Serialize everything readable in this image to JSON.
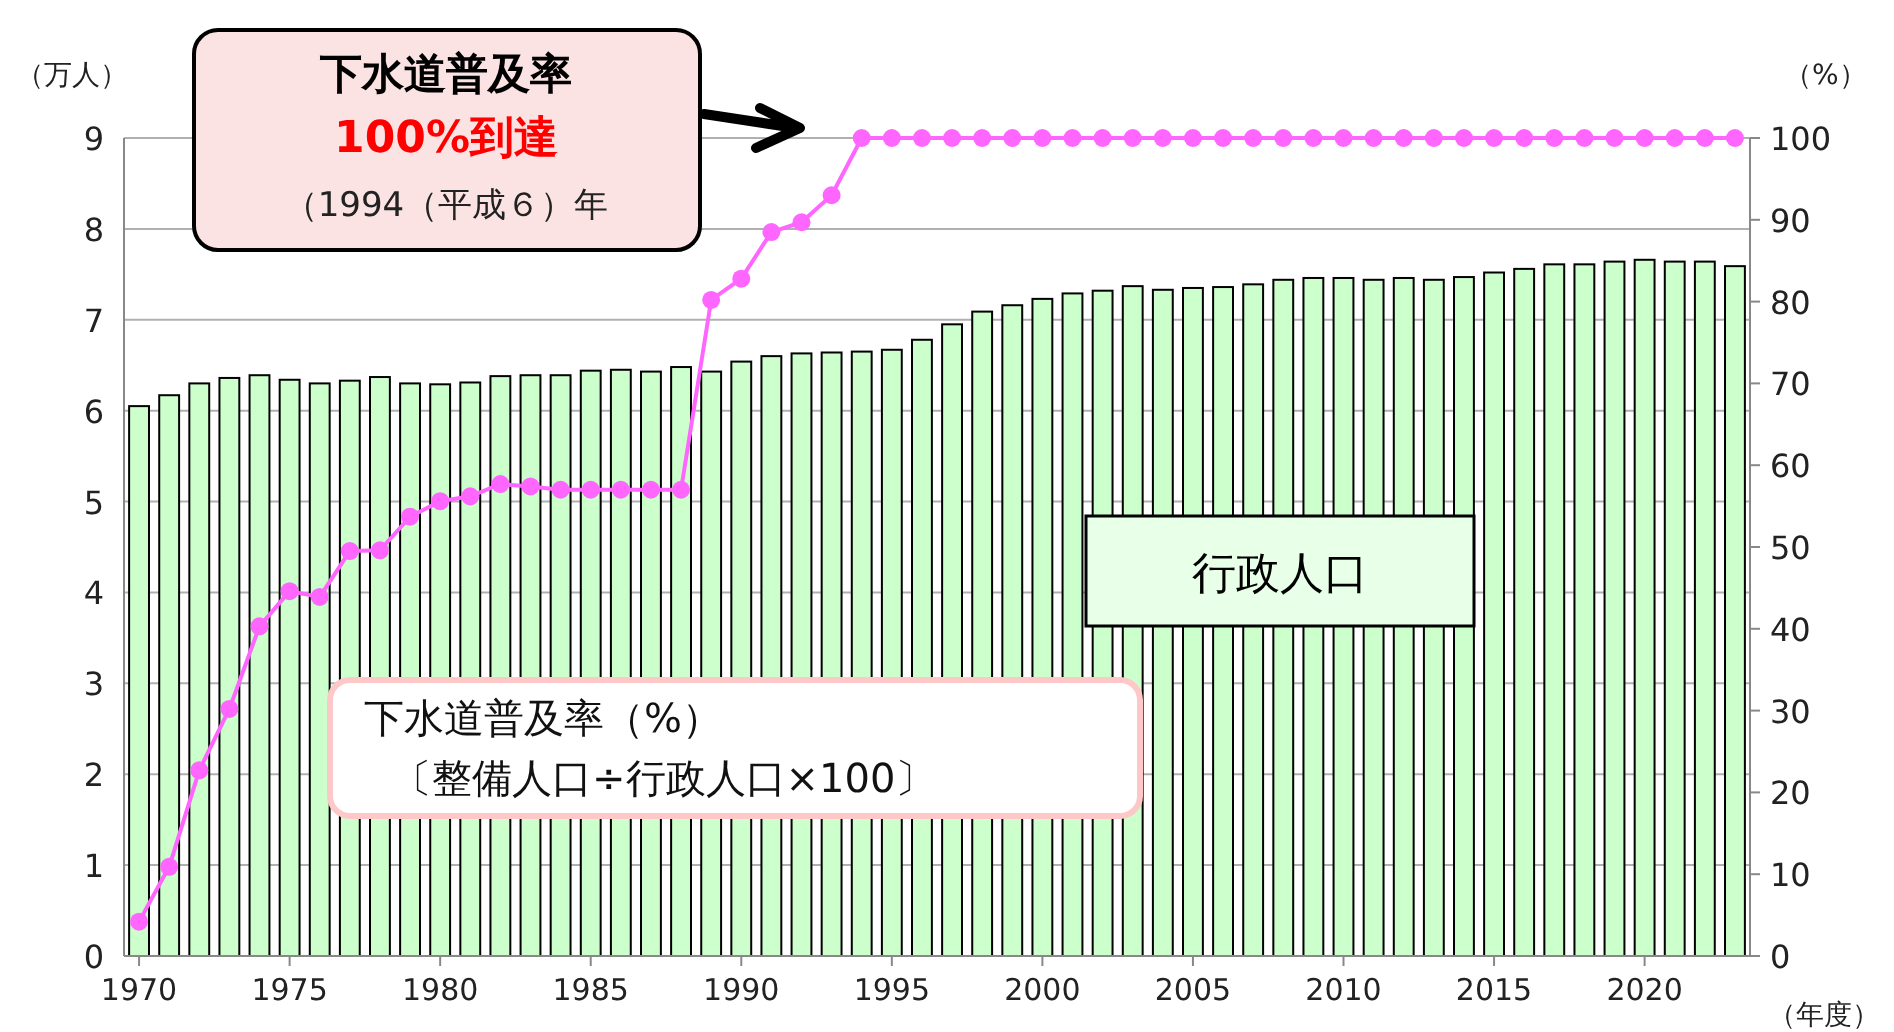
{
  "chart_data": {
    "type": "bar",
    "x": [
      1970,
      1971,
      1972,
      1973,
      1974,
      1975,
      1976,
      1977,
      1978,
      1979,
      1980,
      1981,
      1982,
      1983,
      1984,
      1985,
      1986,
      1987,
      1988,
      1989,
      1990,
      1991,
      1992,
      1993,
      1994,
      1995,
      1996,
      1997,
      1998,
      1999,
      2000,
      2001,
      2002,
      2003,
      2004,
      2005,
      2006,
      2007,
      2008,
      2009,
      2010,
      2011,
      2012,
      2013,
      2014,
      2015,
      2016,
      2017,
      2018,
      2019,
      2020,
      2021,
      2022,
      2023
    ],
    "series": [
      {
        "name": "行政人口",
        "color": "#ccffcc",
        "values": [
          6.05,
          6.17,
          6.3,
          6.36,
          6.39,
          6.34,
          6.3,
          6.33,
          6.37,
          6.3,
          6.29,
          6.31,
          6.38,
          6.39,
          6.39,
          6.44,
          6.45,
          6.43,
          6.48,
          6.43,
          6.54,
          6.6,
          6.63,
          6.64,
          6.65,
          6.67,
          6.78,
          6.95,
          7.09,
          7.16,
          7.23,
          7.29,
          7.32,
          7.37,
          7.33,
          7.35,
          7.36,
          7.39,
          7.44,
          7.46,
          7.46,
          7.44,
          7.46,
          7.44,
          7.47,
          7.52,
          7.56,
          7.61,
          7.61,
          7.64,
          7.66,
          7.64,
          7.64,
          7.59
        ]
      },
      {
        "type": "line",
        "axis": "y2",
        "color": "#ff66ff",
        "values": [
          4.2,
          10.9,
          22.7,
          30.2,
          40.3,
          44.6,
          43.9,
          49.5,
          49.6,
          53.7,
          55.6,
          56.2,
          57.7,
          57.4,
          57,
          57,
          57,
          57,
          57,
          80.2,
          82.8,
          88.5,
          89.7,
          93,
          100,
          100,
          100,
          100,
          100,
          100,
          100,
          100,
          100,
          100,
          100,
          100,
          100,
          100,
          100,
          100,
          100,
          100,
          100,
          100,
          100,
          100,
          100,
          100,
          100,
          100,
          100,
          100,
          100,
          100
        ]
      }
    ],
    "xlim": [
      1969.5,
      2023.5
    ],
    "xticks": [
      1970,
      1975,
      1980,
      1985,
      1990,
      1995,
      2000,
      2005,
      2010,
      2015,
      2020
    ],
    "ylim": [
      0,
      9
    ],
    "yticks": [
      0,
      1,
      2,
      3,
      4,
      5,
      6,
      7,
      8,
      9
    ],
    "y2lim": [
      0,
      100
    ],
    "y2ticks": [
      0,
      10,
      20,
      30,
      40,
      50,
      60,
      70,
      80,
      90,
      100
    ],
    "ylabel": "（万人）",
    "y2label": "（%）",
    "xlabel": "（年度）",
    "grid": "y",
    "legend": false,
    "marker": "circle",
    "annotations": [
      "下水道普及率",
      "100%到達",
      "（1994（平成６）年",
      "下水道普及率（%）",
      "〔整備人口÷行政人口×100〕"
    ]
  }
}
